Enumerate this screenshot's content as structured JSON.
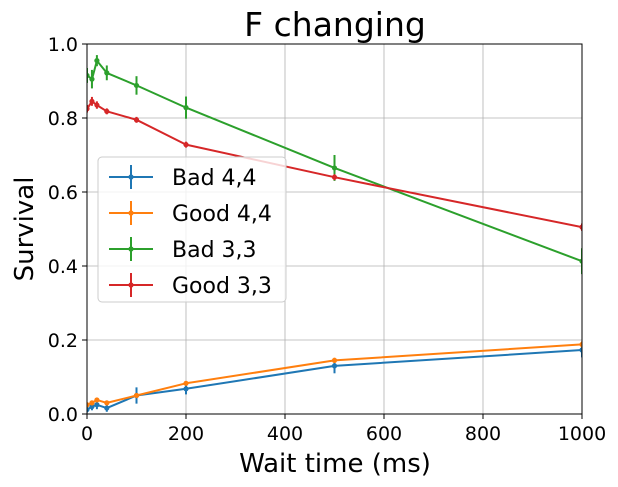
{
  "chart_data": {
    "type": "line",
    "title": "F changing",
    "xlabel": "Wait time (ms)",
    "ylabel": "Survival",
    "xlim": [
      0,
      1000
    ],
    "ylim": [
      0,
      1.0
    ],
    "xticks": [
      0,
      200,
      400,
      600,
      800,
      1000
    ],
    "yticks": [
      0.0,
      0.2,
      0.4,
      0.6,
      0.8,
      1.0
    ],
    "xtick_labels": [
      "0",
      "200",
      "400",
      "600",
      "800",
      "1000"
    ],
    "ytick_labels": [
      "0.0",
      "0.2",
      "0.4",
      "0.6",
      "0.8",
      "1.0"
    ],
    "grid": true,
    "legend_position": "center-left",
    "series": [
      {
        "name": "Bad 4,4",
        "color": "#1f77b4",
        "points": [
          {
            "x": 0,
            "y": 0.012,
            "err": 0.008
          },
          {
            "x": 10,
            "y": 0.02,
            "err": 0.01
          },
          {
            "x": 20,
            "y": 0.025,
            "err": 0.012
          },
          {
            "x": 40,
            "y": 0.016,
            "err": 0.01
          },
          {
            "x": 100,
            "y": 0.05,
            "err": 0.022
          },
          {
            "x": 200,
            "y": 0.068,
            "err": 0.015
          },
          {
            "x": 500,
            "y": 0.13,
            "err": 0.02
          },
          {
            "x": 1000,
            "y": 0.173,
            "err": 0.02
          }
        ]
      },
      {
        "name": "Good 4,4",
        "color": "#ff7f0e",
        "points": [
          {
            "x": 0,
            "y": 0.025,
            "err": 0.005
          },
          {
            "x": 10,
            "y": 0.03,
            "err": 0.005
          },
          {
            "x": 20,
            "y": 0.038,
            "err": 0.005
          },
          {
            "x": 40,
            "y": 0.03,
            "err": 0.005
          },
          {
            "x": 100,
            "y": 0.05,
            "err": 0.005
          },
          {
            "x": 200,
            "y": 0.083,
            "err": 0.006
          },
          {
            "x": 500,
            "y": 0.145,
            "err": 0.007
          },
          {
            "x": 1000,
            "y": 0.188,
            "err": 0.008
          }
        ]
      },
      {
        "name": "Bad 3,3",
        "color": "#2ca02c",
        "points": [
          {
            "x": 0,
            "y": 0.915,
            "err": 0.02
          },
          {
            "x": 10,
            "y": 0.905,
            "err": 0.025
          },
          {
            "x": 20,
            "y": 0.955,
            "err": 0.015
          },
          {
            "x": 40,
            "y": 0.922,
            "err": 0.02
          },
          {
            "x": 100,
            "y": 0.888,
            "err": 0.025
          },
          {
            "x": 200,
            "y": 0.828,
            "err": 0.03
          },
          {
            "x": 500,
            "y": 0.665,
            "err": 0.035
          },
          {
            "x": 1000,
            "y": 0.413,
            "err": 0.035
          }
        ]
      },
      {
        "name": "Good 3,3",
        "color": "#d62728",
        "points": [
          {
            "x": 0,
            "y": 0.825,
            "err": 0.01
          },
          {
            "x": 10,
            "y": 0.845,
            "err": 0.012
          },
          {
            "x": 20,
            "y": 0.835,
            "err": 0.01
          },
          {
            "x": 40,
            "y": 0.818,
            "err": 0.008
          },
          {
            "x": 100,
            "y": 0.795,
            "err": 0.008
          },
          {
            "x": 200,
            "y": 0.728,
            "err": 0.008
          },
          {
            "x": 500,
            "y": 0.64,
            "err": 0.008
          },
          {
            "x": 1000,
            "y": 0.505,
            "err": 0.01
          }
        ]
      }
    ]
  }
}
